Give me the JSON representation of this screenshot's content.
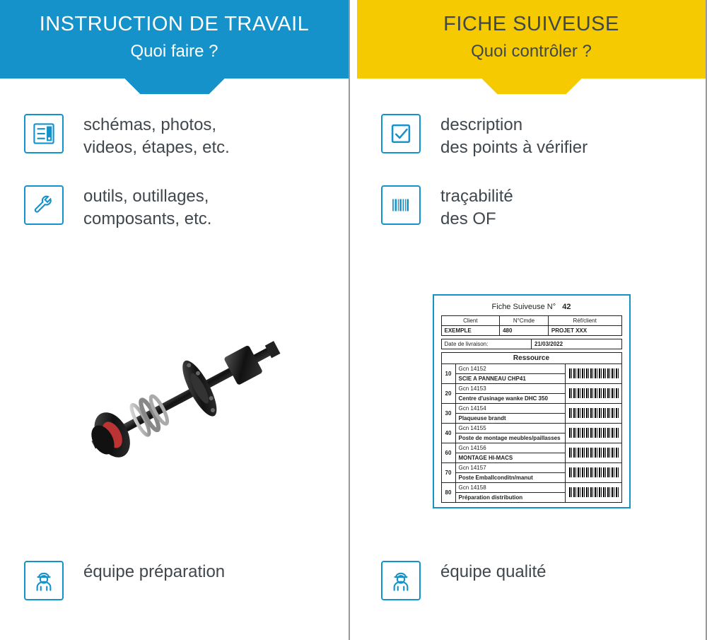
{
  "colors": {
    "blue": "#1692cb",
    "yellow": "#f6ca00",
    "text": "#40474d",
    "border": "#999"
  },
  "left": {
    "title": "INSTRUCTION DE TRAVAIL",
    "subtitle": "Quoi faire ?",
    "rows": [
      {
        "icon": "checklist",
        "text": "schémas, photos,\nvideos, étapes, etc."
      },
      {
        "icon": "wrench",
        "text": "outils, outillages,\ncomposants, etc."
      }
    ],
    "footer": {
      "icon": "worker",
      "text": "équipe préparation"
    }
  },
  "right": {
    "title": "FICHE SUIVEUSE",
    "subtitle": "Quoi contrôler ?",
    "rows": [
      {
        "icon": "checkbox",
        "text": "description\ndes points à vérifier"
      },
      {
        "icon": "barcode",
        "text": "traçabilité\ndes OF"
      }
    ],
    "footer": {
      "icon": "worker",
      "text": "équipe qualité"
    }
  },
  "doc": {
    "title_prefix": "Fiche Suiveuse N°",
    "number": "42",
    "labels": {
      "client": "Client",
      "cmde": "N°Cmde",
      "ref": "Réf/client",
      "livr": "Date de livraison:",
      "ressource": "Ressource"
    },
    "client": "EXEMPLE",
    "cmde": "480",
    "ref": "PROJET XXX",
    "date": "21/03/2022",
    "rows": [
      {
        "n": "10",
        "g": "Gcn 14152",
        "d": "SCIE A PANNEAU CHP41"
      },
      {
        "n": "20",
        "g": "Gcn 14153",
        "d": "Centre d'usinage wanke DHC 350"
      },
      {
        "n": "30",
        "g": "Gcn 14154",
        "d": "Plaqueuse brandt"
      },
      {
        "n": "40",
        "g": "Gcn 14155",
        "d": "Poste de montage meubles/paillasses"
      },
      {
        "n": "60",
        "g": "Gcn 14156",
        "d": "MONTAGE HI-MACS"
      },
      {
        "n": "70",
        "g": "Gcn 14157",
        "d": "Poste Emballconditn/manut"
      },
      {
        "n": "80",
        "g": "Gcn 14158",
        "d": "Préparation distribution"
      }
    ]
  }
}
